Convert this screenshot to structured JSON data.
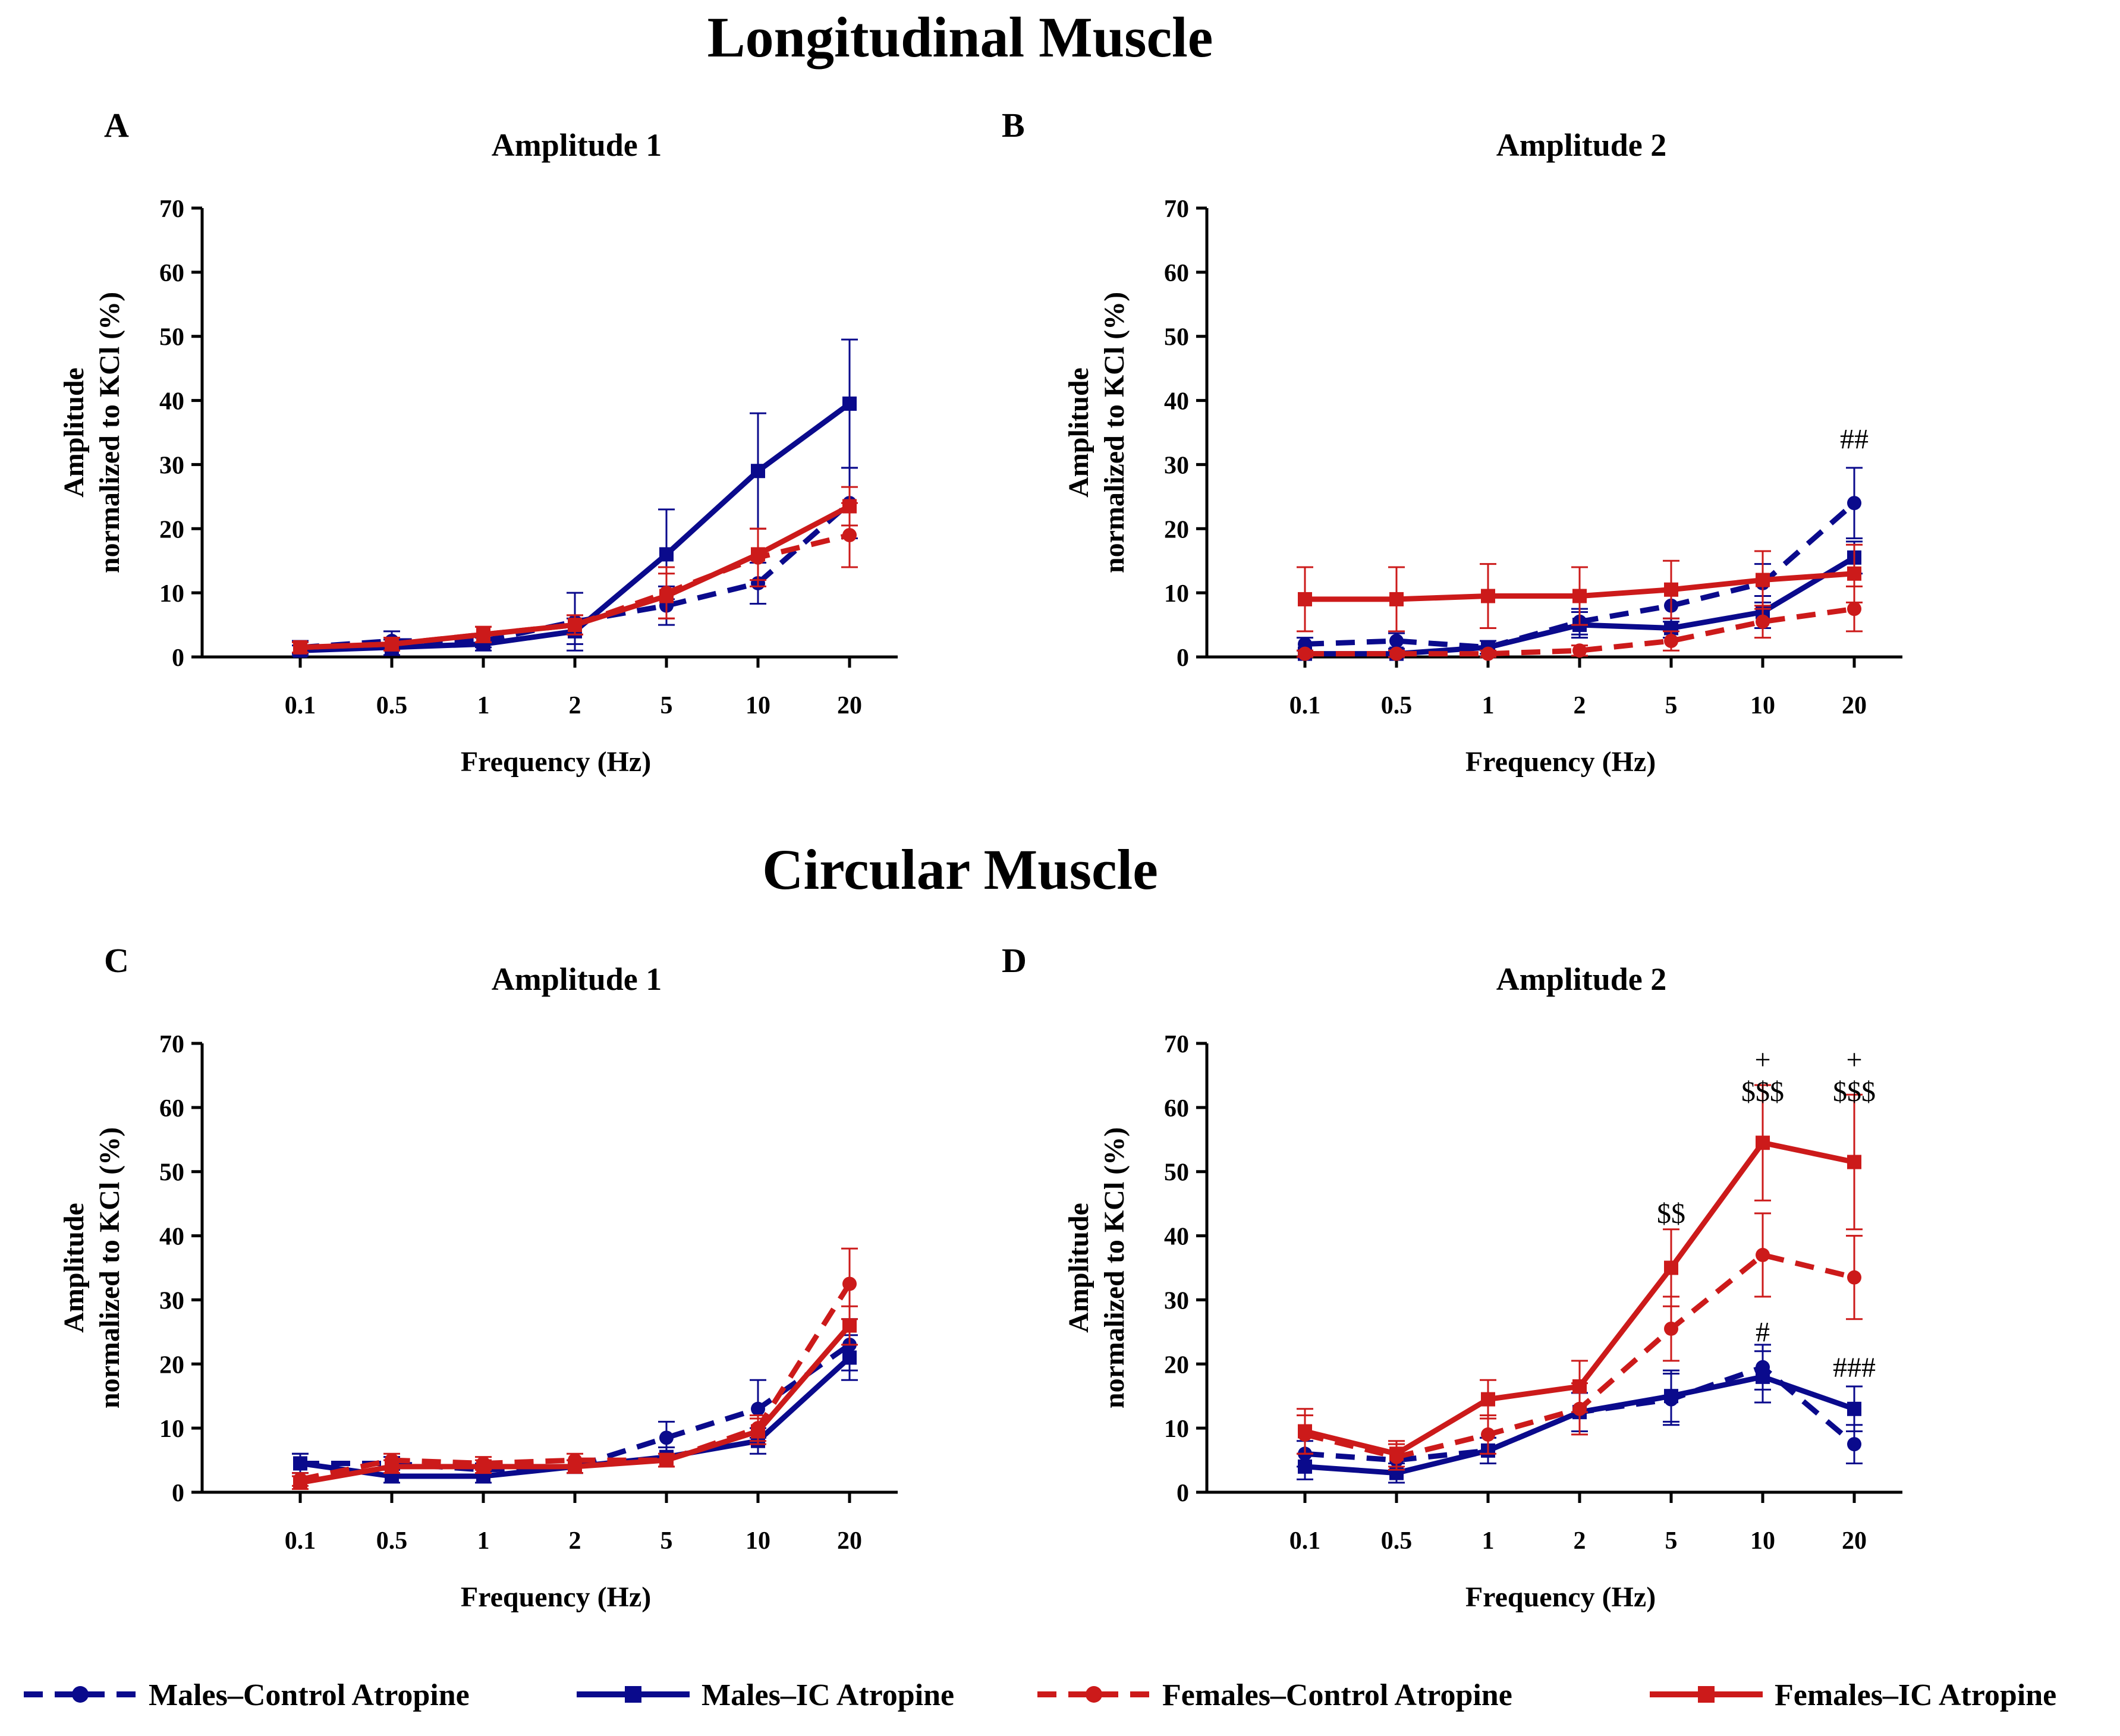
{
  "sections": {
    "top": "Longitudinal Muscle",
    "bottom": "Circular Muscle"
  },
  "legend": [
    {
      "name": "Males–Control Atropine",
      "color": "#0a0a8c",
      "dash": true,
      "marker": "circle"
    },
    {
      "name": "Males–IC Atropine",
      "color": "#0a0a8c",
      "dash": false,
      "marker": "square"
    },
    {
      "name": "Females–Control Atropine",
      "color": "#cc1a1a",
      "dash": true,
      "marker": "circle"
    },
    {
      "name": "Females–IC Atropine",
      "color": "#cc1a1a",
      "dash": false,
      "marker": "square"
    }
  ],
  "chart_data": [
    {
      "type": "line",
      "panel": "A",
      "title": "Amplitude 1",
      "xlabel": "Frequency (Hz)",
      "ylabel_line1": "Amplitude",
      "ylabel_line2": "normalized to KCl (%)",
      "ylim": [
        0,
        70
      ],
      "yticks": [
        0,
        10,
        20,
        30,
        40,
        50,
        60,
        70
      ],
      "categories": [
        "0.1",
        "0.5",
        "1",
        "2",
        "5",
        "10",
        "20"
      ],
      "series": [
        {
          "name": "Males–Control Atropine",
          "values": [
            1.5,
            2.5,
            2.5,
            5.5,
            8,
            11.5,
            24
          ],
          "errors": [
            1,
            1.5,
            1,
            4.5,
            3,
            3.2,
            5.5
          ]
        },
        {
          "name": "Males–IC Atropine",
          "values": [
            1,
            1.5,
            2,
            4,
            16,
            29,
            39.5
          ],
          "errors": [
            0.8,
            1.2,
            1,
            2,
            7,
            9,
            10
          ]
        },
        {
          "name": "Females–Control Atropine",
          "values": [
            1.5,
            2,
            3.5,
            5,
            10,
            15.5,
            19
          ],
          "errors": [
            0.8,
            1,
            1.2,
            1.5,
            4,
            4.5,
            5
          ]
        },
        {
          "name": "Females–IC Atropine",
          "values": [
            1.5,
            2,
            3.5,
            5,
            9.5,
            16,
            23.5
          ],
          "errors": [
            0.8,
            1,
            1.2,
            1.5,
            3.5,
            4,
            3
          ]
        }
      ],
      "annotations": []
    },
    {
      "type": "line",
      "panel": "B",
      "title": "Amplitude 2",
      "xlabel": "Frequency (Hz)",
      "ylabel_line1": "Amplitude",
      "ylabel_line2": "normalized to KCl (%)",
      "ylim": [
        0,
        70
      ],
      "yticks": [
        0,
        10,
        20,
        30,
        40,
        50,
        60,
        70
      ],
      "categories": [
        "0.1",
        "0.5",
        "1",
        "2",
        "5",
        "10",
        "20"
      ],
      "series": [
        {
          "name": "Males–Control Atropine",
          "values": [
            2,
            2.5,
            1.5,
            5.5,
            8,
            11.5,
            24
          ],
          "errors": [
            1,
            1.2,
            1,
            2,
            2.5,
            3,
            5.5
          ]
        },
        {
          "name": "Males–IC Atropine",
          "values": [
            0.5,
            0.5,
            1.5,
            5,
            4.5,
            7,
            15.5
          ],
          "errors": [
            0.5,
            0.5,
            1,
            2,
            1.5,
            2.5,
            2.5
          ]
        },
        {
          "name": "Females–Control Atropine",
          "values": [
            0.5,
            0.5,
            0.5,
            1,
            2.5,
            5.5,
            7.5
          ],
          "errors": [
            0.5,
            0.5,
            0.5,
            0.8,
            1.5,
            2.5,
            3.5
          ]
        },
        {
          "name": "Females–IC Atropine",
          "values": [
            9,
            9,
            9.5,
            9.5,
            10.5,
            12,
            13
          ],
          "errors": [
            5,
            5,
            5,
            4.5,
            4.5,
            4.5,
            4.5
          ]
        }
      ],
      "annotations": [
        {
          "cat": "20",
          "y": 32.5,
          "text": "##"
        }
      ]
    },
    {
      "type": "line",
      "panel": "C",
      "title": "Amplitude 1",
      "xlabel": "Frequency (Hz)",
      "ylabel_line1": "Amplitude",
      "ylabel_line2": "normalized to KCl (%)",
      "ylim": [
        0,
        70
      ],
      "yticks": [
        0,
        10,
        20,
        30,
        40,
        50,
        60,
        70
      ],
      "categories": [
        "0.1",
        "0.5",
        "1",
        "2",
        "5",
        "10",
        "20"
      ],
      "series": [
        {
          "name": "Males–Control Atropine",
          "values": [
            4.5,
            4.5,
            3.5,
            4,
            8.5,
            13,
            23
          ],
          "errors": [
            1.5,
            1,
            1,
            1,
            2.5,
            4.5,
            4
          ]
        },
        {
          "name": "Males–IC Atropine",
          "values": [
            4.5,
            2.5,
            2.5,
            4,
            5.5,
            8,
            21
          ],
          "errors": [
            1.5,
            1,
            1,
            1,
            1.5,
            2,
            3.5
          ]
        },
        {
          "name": "Females–Control Atropine",
          "values": [
            2,
            5,
            4.5,
            5,
            5,
            10,
            32.5
          ],
          "errors": [
            1,
            1,
            1,
            1,
            1,
            2,
            5.5
          ]
        },
        {
          "name": "Females–IC Atropine",
          "values": [
            1.5,
            4,
            4,
            4,
            5,
            9.5,
            26
          ],
          "errors": [
            1,
            1,
            1,
            1,
            1,
            2,
            3
          ]
        }
      ],
      "annotations": []
    },
    {
      "type": "line",
      "panel": "D",
      "title": "Amplitude 2",
      "xlabel": "Frequency (Hz)",
      "ylabel_line1": "Amplitude",
      "ylabel_line2": "normalized to KCl (%)",
      "ylim": [
        0,
        70
      ],
      "yticks": [
        0,
        10,
        20,
        30,
        40,
        50,
        60,
        70
      ],
      "categories": [
        "0.1",
        "0.5",
        "1",
        "2",
        "5",
        "10",
        "20"
      ],
      "series": [
        {
          "name": "Males–Control Atropine",
          "values": [
            6,
            5,
            6.5,
            12.5,
            14.5,
            19.5,
            7.5
          ],
          "errors": [
            2,
            1.5,
            2,
            3,
            4,
            3.5,
            3
          ]
        },
        {
          "name": "Males–IC Atropine",
          "values": [
            4,
            3,
            6.5,
            12.5,
            15,
            18,
            13
          ],
          "errors": [
            2,
            1.5,
            2,
            3,
            4,
            4,
            3.5
          ]
        },
        {
          "name": "Females–Control Atropine",
          "values": [
            9,
            5.5,
            9,
            13,
            25.5,
            37,
            33.5
          ],
          "errors": [
            3,
            2,
            3,
            4,
            5,
            6.5,
            6.5
          ]
        },
        {
          "name": "Females–IC Atropine",
          "values": [
            9.5,
            6,
            14.5,
            16.5,
            35,
            54.5,
            51.5
          ],
          "errors": [
            3.5,
            2,
            3,
            4,
            6,
            9,
            10.5
          ]
        }
      ],
      "annotations": [
        {
          "cat": "5",
          "y": 42,
          "text": "$$"
        },
        {
          "cat": "10",
          "y": 66,
          "text": "+"
        },
        {
          "cat": "10",
          "y": 61,
          "text": "$$$"
        },
        {
          "cat": "10",
          "y": 23.5,
          "text": "#"
        },
        {
          "cat": "20",
          "y": 66,
          "text": "+"
        },
        {
          "cat": "20",
          "y": 61,
          "text": "$$$"
        },
        {
          "cat": "20",
          "y": 18,
          "text": "###"
        }
      ]
    }
  ]
}
